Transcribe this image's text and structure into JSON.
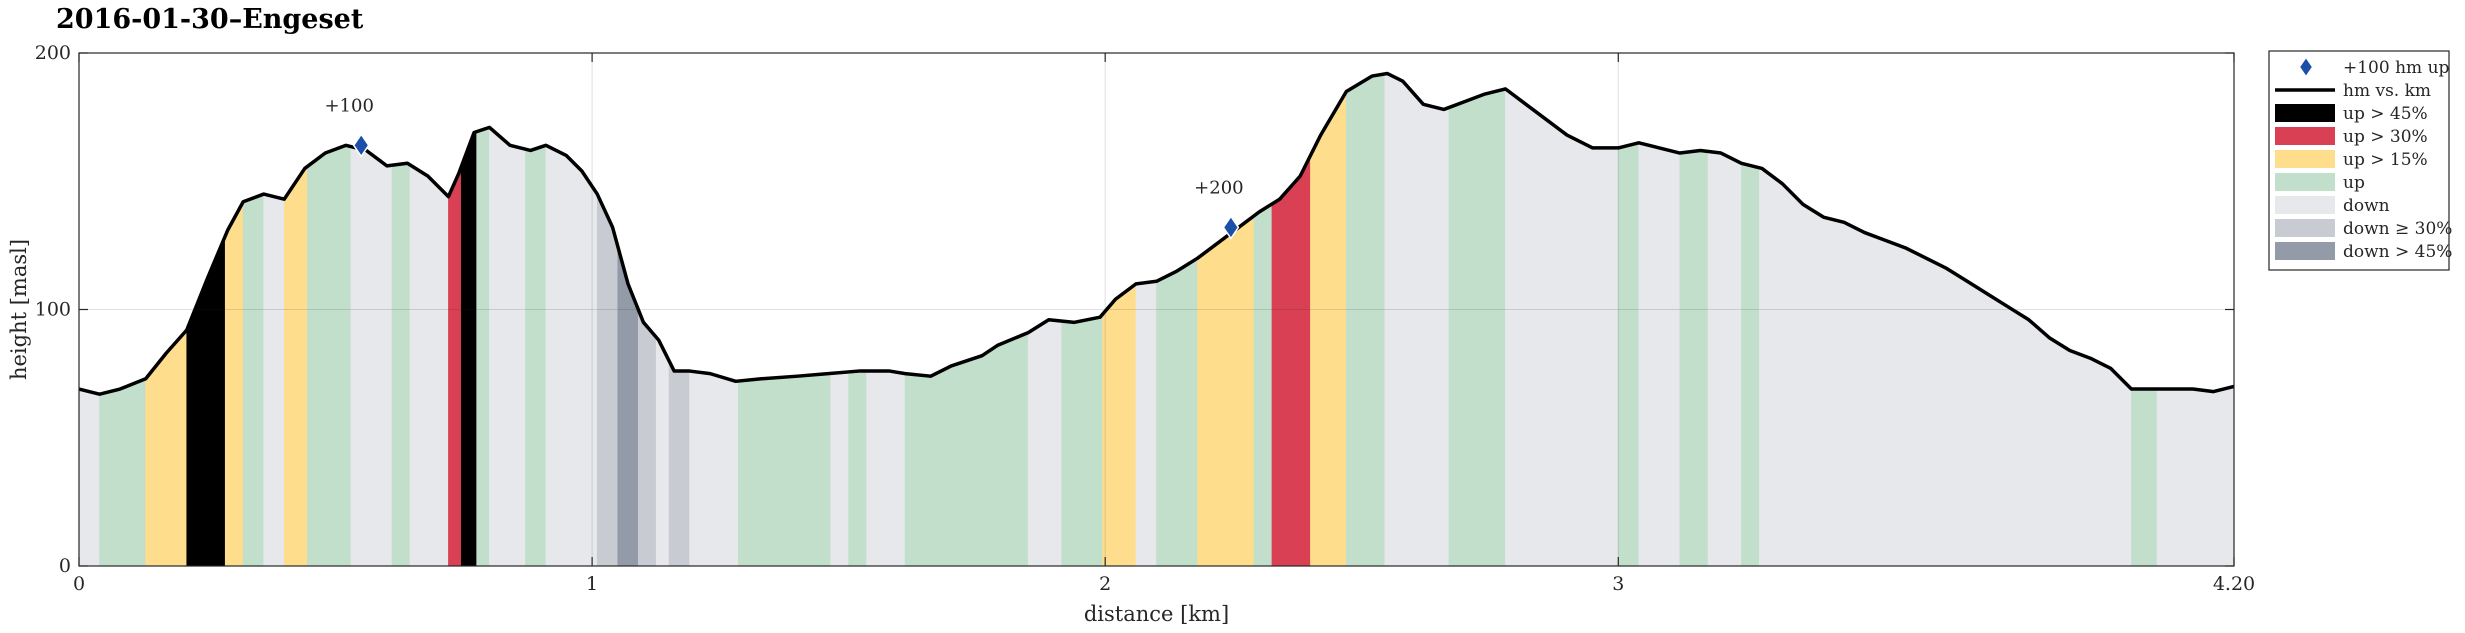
{
  "chart_data": {
    "type": "area",
    "title": "2016-01-30–Engeset",
    "xlabel": "distance [km]",
    "ylabel": "height [masl]",
    "xlim": [
      0,
      4.2
    ],
    "ylim": [
      0,
      200
    ],
    "xticks": [
      0,
      1,
      2,
      3,
      4.2
    ],
    "xtick_labels": [
      "0",
      "1",
      "2",
      "3",
      "4.20"
    ],
    "yticks": [
      0,
      100,
      200
    ],
    "ytick_labels": [
      "0",
      "100",
      "200"
    ],
    "grid": true,
    "legend_position": "outside-right-top",
    "colors": {
      "up45": "#000000",
      "up30": "#d94054",
      "up15": "#fedd8c",
      "up": "#c2dfcc",
      "down": "#e7e8ec",
      "down30": "#c9cbd2",
      "down45": "#939aa8",
      "line": "#000000",
      "marker": "#1c4fa8"
    },
    "legend": [
      {
        "label": "+100 hm up",
        "kind": "marker",
        "color": "marker"
      },
      {
        "label": "hm vs. km",
        "kind": "line",
        "color": "line"
      },
      {
        "label": "up > 45%",
        "kind": "patch",
        "color": "up45"
      },
      {
        "label": "up > 30%",
        "kind": "patch",
        "color": "up30"
      },
      {
        "label": "up > 15%",
        "kind": "patch",
        "color": "up15"
      },
      {
        "label": "up",
        "kind": "patch",
        "color": "up"
      },
      {
        "label": "down",
        "kind": "patch",
        "color": "down"
      },
      {
        "label": "down ≥ 30%",
        "kind": "patch",
        "color": "down30"
      },
      {
        "label": "down > 45%",
        "kind": "patch",
        "color": "down45"
      }
    ],
    "profile": {
      "x": [
        0,
        0.04,
        0.08,
        0.13,
        0.17,
        0.21,
        0.25,
        0.29,
        0.32,
        0.36,
        0.4,
        0.44,
        0.48,
        0.52,
        0.56,
        0.6,
        0.64,
        0.68,
        0.72,
        0.74,
        0.77,
        0.8,
        0.84,
        0.88,
        0.91,
        0.95,
        0.98,
        1.01,
        1.04,
        1.07,
        1.1,
        1.13,
        1.16,
        1.19,
        1.23,
        1.28,
        1.33,
        1.4,
        1.46,
        1.52,
        1.58,
        1.61,
        1.66,
        1.7,
        1.76,
        1.79,
        1.85,
        1.89,
        1.94,
        1.99,
        2.02,
        2.06,
        2.1,
        2.14,
        2.18,
        2.22,
        2.26,
        2.3,
        2.34,
        2.38,
        2.42,
        2.47,
        2.52,
        2.55,
        2.58,
        2.62,
        2.66,
        2.7,
        2.74,
        2.78,
        2.82,
        2.86,
        2.9,
        2.95,
        3.0,
        3.04,
        3.08,
        3.12,
        3.16,
        3.2,
        3.24,
        3.28,
        3.32,
        3.36,
        3.4,
        3.44,
        3.48,
        3.52,
        3.56,
        3.6,
        3.64,
        3.68,
        3.72,
        3.76,
        3.8,
        3.84,
        3.88,
        3.92,
        3.96,
        4.0,
        4.04,
        4.08,
        4.12,
        4.16,
        4.2
      ],
      "y": [
        69,
        67,
        69,
        73,
        83,
        92,
        112,
        131,
        142,
        145,
        143,
        155,
        161,
        164,
        162,
        156,
        157,
        152,
        144,
        153,
        169,
        171,
        164,
        162,
        164,
        160,
        154,
        145,
        132,
        110,
        95,
        88,
        76,
        76,
        75,
        72,
        73,
        74,
        75,
        76,
        76,
        75,
        74,
        78,
        82,
        86,
        91,
        96,
        95,
        97,
        104,
        110,
        111,
        115,
        120,
        126,
        132,
        138,
        143,
        152,
        168,
        185,
        191,
        192,
        189,
        180,
        178,
        181,
        184,
        186,
        180,
        174,
        168,
        163,
        163,
        165,
        163,
        161,
        162,
        161,
        157,
        155,
        149,
        141,
        136,
        134,
        130,
        127,
        124,
        120,
        116,
        111,
        106,
        101,
        96,
        89,
        84,
        81,
        77,
        69,
        69,
        69,
        69,
        68,
        70
      ]
    },
    "segments": [
      {
        "x0": 0.0,
        "x1": 0.04,
        "class": "down"
      },
      {
        "x0": 0.04,
        "x1": 0.13,
        "class": "up"
      },
      {
        "x0": 0.13,
        "x1": 0.21,
        "class": "up15"
      },
      {
        "x0": 0.21,
        "x1": 0.285,
        "class": "up45"
      },
      {
        "x0": 0.285,
        "x1": 0.32,
        "class": "up15"
      },
      {
        "x0": 0.32,
        "x1": 0.36,
        "class": "up"
      },
      {
        "x0": 0.36,
        "x1": 0.4,
        "class": "down"
      },
      {
        "x0": 0.4,
        "x1": 0.445,
        "class": "up15"
      },
      {
        "x0": 0.445,
        "x1": 0.53,
        "class": "up"
      },
      {
        "x0": 0.53,
        "x1": 0.61,
        "class": "down"
      },
      {
        "x0": 0.61,
        "x1": 0.645,
        "class": "up"
      },
      {
        "x0": 0.645,
        "x1": 0.72,
        "class": "down"
      },
      {
        "x0": 0.72,
        "x1": 0.745,
        "class": "up30"
      },
      {
        "x0": 0.745,
        "x1": 0.775,
        "class": "up45"
      },
      {
        "x0": 0.775,
        "x1": 0.8,
        "class": "up"
      },
      {
        "x0": 0.8,
        "x1": 0.87,
        "class": "down"
      },
      {
        "x0": 0.87,
        "x1": 0.91,
        "class": "up"
      },
      {
        "x0": 0.91,
        "x1": 1.01,
        "class": "down"
      },
      {
        "x0": 1.01,
        "x1": 1.05,
        "class": "down30"
      },
      {
        "x0": 1.05,
        "x1": 1.09,
        "class": "down45"
      },
      {
        "x0": 1.09,
        "x1": 1.125,
        "class": "down30"
      },
      {
        "x0": 1.125,
        "x1": 1.15,
        "class": "down"
      },
      {
        "x0": 1.15,
        "x1": 1.19,
        "class": "down30"
      },
      {
        "x0": 1.19,
        "x1": 1.285,
        "class": "down"
      },
      {
        "x0": 1.285,
        "x1": 1.465,
        "class": "up"
      },
      {
        "x0": 1.465,
        "x1": 1.5,
        "class": "down"
      },
      {
        "x0": 1.5,
        "x1": 1.535,
        "class": "up"
      },
      {
        "x0": 1.535,
        "x1": 1.61,
        "class": "down"
      },
      {
        "x0": 1.61,
        "x1": 1.85,
        "class": "up"
      },
      {
        "x0": 1.85,
        "x1": 1.915,
        "class": "down"
      },
      {
        "x0": 1.915,
        "x1": 1.995,
        "class": "up"
      },
      {
        "x0": 1.995,
        "x1": 2.06,
        "class": "up15"
      },
      {
        "x0": 2.06,
        "x1": 2.1,
        "class": "down"
      },
      {
        "x0": 2.1,
        "x1": 2.18,
        "class": "up"
      },
      {
        "x0": 2.18,
        "x1": 2.29,
        "class": "up15"
      },
      {
        "x0": 2.29,
        "x1": 2.325,
        "class": "up"
      },
      {
        "x0": 2.325,
        "x1": 2.4,
        "class": "up30"
      },
      {
        "x0": 2.4,
        "x1": 2.47,
        "class": "up15"
      },
      {
        "x0": 2.47,
        "x1": 2.545,
        "class": "up"
      },
      {
        "x0": 2.545,
        "x1": 2.67,
        "class": "down"
      },
      {
        "x0": 2.67,
        "x1": 2.78,
        "class": "up"
      },
      {
        "x0": 2.78,
        "x1": 3.0,
        "class": "down"
      },
      {
        "x0": 3.0,
        "x1": 3.04,
        "class": "up"
      },
      {
        "x0": 3.04,
        "x1": 3.12,
        "class": "down"
      },
      {
        "x0": 3.12,
        "x1": 3.175,
        "class": "up"
      },
      {
        "x0": 3.175,
        "x1": 3.24,
        "class": "down"
      },
      {
        "x0": 3.24,
        "x1": 3.275,
        "class": "up"
      },
      {
        "x0": 3.275,
        "x1": 4.0,
        "class": "down"
      },
      {
        "x0": 4.0,
        "x1": 4.05,
        "class": "up"
      },
      {
        "x0": 4.05,
        "x1": 4.2,
        "class": "down"
      }
    ],
    "markers": [
      {
        "x": 0.55,
        "y": 164,
        "label": "+100"
      },
      {
        "x": 2.245,
        "y": 132,
        "label": "+200"
      }
    ]
  }
}
